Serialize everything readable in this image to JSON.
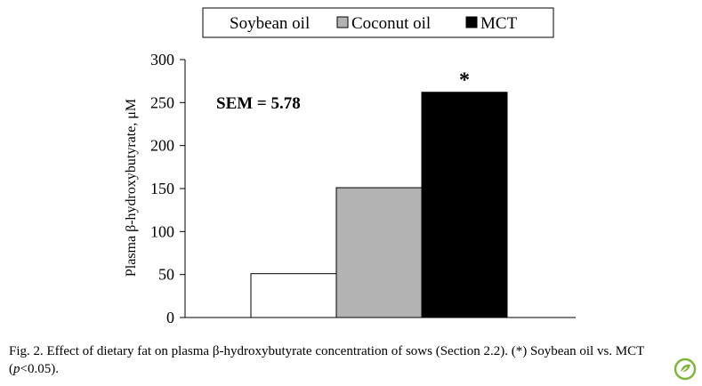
{
  "chart_data": {
    "type": "bar",
    "categories": [
      "Soybean oil",
      "Coconut oil",
      "MCT"
    ],
    "values": [
      51,
      151,
      262
    ],
    "ylabel": "Plasma β-hydroxybutyrate, μM",
    "ylim": [
      0,
      300
    ],
    "yticks": [
      0,
      50,
      100,
      150,
      200,
      250,
      300
    ],
    "annotation": "SEM = 5.78",
    "significance_marker": "*",
    "significance_category": "MCT",
    "legend": {
      "placement": "top-center",
      "entries": [
        {
          "name": "Soybean oil",
          "color": "#ffffff"
        },
        {
          "name": "Coconut oil",
          "color": "#b3b3b3"
        },
        {
          "name": "MCT",
          "color": "#000000"
        }
      ]
    },
    "colors": [
      "#ffffff",
      "#b3b3b3",
      "#000000"
    ],
    "grid": false
  },
  "caption": {
    "prefix": "Fig. 2.  Effect of dietary fat on plasma β-hydroxybutyrate concentration of sows (Section 2.2). (*) Soybean oil vs. MCT (",
    "p_italic": "p",
    "suffix": "<0.05)."
  },
  "logo_icon": "leaf-badge-icon"
}
